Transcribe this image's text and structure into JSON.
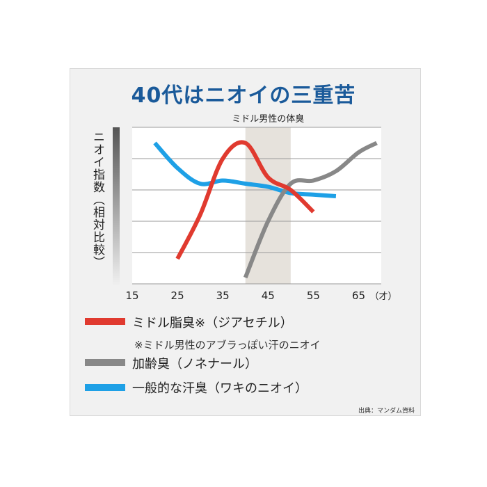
{
  "title": "40代はニオイの三重苦",
  "chart_data": {
    "type": "line",
    "title": "40代はニオイの三重苦",
    "ylabel": "ニオイ指数（相対比較）",
    "xlabel": "",
    "x_ticks": [
      "15",
      "25",
      "35",
      "45",
      "55",
      "65"
    ],
    "x_unit": "（才）",
    "xlim": [
      15,
      70
    ],
    "ylim": [
      0,
      5
    ],
    "grid": true,
    "highlight": {
      "label": "ミドル男性の体臭",
      "x_range": [
        40,
        50
      ],
      "color": "#e6e2dc"
    },
    "series": [
      {
        "name": "ミドル脂臭※（ジアセチル）",
        "color": "#e03a2f",
        "points": [
          [
            25,
            0.8
          ],
          [
            30,
            2.2
          ],
          [
            35,
            4.0
          ],
          [
            40,
            4.5
          ],
          [
            45,
            3.4
          ],
          [
            50,
            3.0
          ],
          [
            55,
            2.3
          ]
        ]
      },
      {
        "name": "加齢臭（ノネナール）",
        "color": "#888888",
        "points": [
          [
            40,
            0.2
          ],
          [
            45,
            2.0
          ],
          [
            50,
            3.2
          ],
          [
            55,
            3.3
          ],
          [
            60,
            3.6
          ],
          [
            65,
            4.2
          ],
          [
            69,
            4.5
          ]
        ]
      },
      {
        "name": "一般的な汗臭（ワキのニオイ）",
        "color": "#1ea0e6",
        "points": [
          [
            20,
            4.5
          ],
          [
            25,
            3.7
          ],
          [
            30,
            3.2
          ],
          [
            35,
            3.3
          ],
          [
            40,
            3.2
          ],
          [
            45,
            3.1
          ],
          [
            50,
            2.9
          ],
          [
            55,
            2.85
          ],
          [
            60,
            2.8
          ]
        ]
      }
    ]
  },
  "legend": {
    "items": [
      {
        "label": "ミドル脂臭※（ジアセチル）",
        "color": "#e03a2f"
      },
      {
        "label": "加齢臭（ノネナール）",
        "color": "#888888"
      },
      {
        "label": "一般的な汗臭（ワキのニオイ）",
        "color": "#1ea0e6"
      }
    ],
    "note": "※ミドル男性のアブラっぽい汗のニオイ"
  },
  "source": "出典：マンダム資料"
}
